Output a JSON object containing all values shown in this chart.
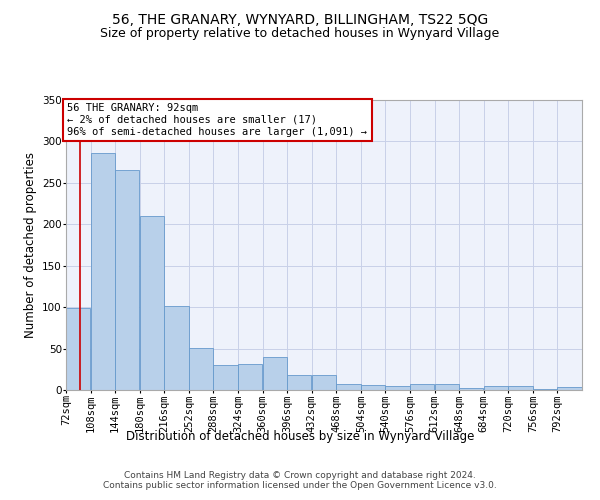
{
  "title": "56, THE GRANARY, WYNYARD, BILLINGHAM, TS22 5QG",
  "subtitle": "Size of property relative to detached houses in Wynyard Village",
  "xlabel": "Distribution of detached houses by size in Wynyard Village",
  "ylabel": "Number of detached properties",
  "bar_color": "#b8d0ea",
  "bar_edge_color": "#6699cc",
  "background_color": "#eef2fb",
  "grid_color": "#c8d0e8",
  "annotation_text": "56 THE GRANARY: 92sqm\n← 2% of detached houses are smaller (17)\n96% of semi-detached houses are larger (1,091) →",
  "marker_value": 92,
  "marker_color": "#cc0000",
  "bins": [
    72,
    108,
    144,
    180,
    216,
    252,
    288,
    324,
    360,
    396,
    432,
    468,
    504,
    540,
    576,
    612,
    648,
    684,
    720,
    756,
    792
  ],
  "counts": [
    99,
    286,
    265,
    210,
    101,
    51,
    30,
    31,
    40,
    18,
    18,
    7,
    6,
    5,
    7,
    7,
    3,
    5,
    5,
    1,
    4
  ],
  "ylim": [
    0,
    350
  ],
  "yticks": [
    0,
    50,
    100,
    150,
    200,
    250,
    300,
    350
  ],
  "footer": "Contains HM Land Registry data © Crown copyright and database right 2024.\nContains public sector information licensed under the Open Government Licence v3.0.",
  "title_fontsize": 10,
  "subtitle_fontsize": 9,
  "axis_label_fontsize": 8.5,
  "tick_fontsize": 7.5,
  "footer_fontsize": 6.5
}
